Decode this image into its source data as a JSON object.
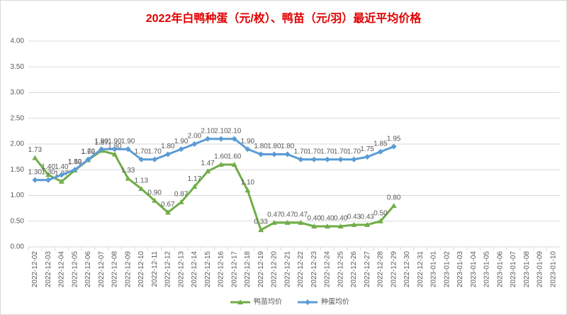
{
  "chart_data": {
    "type": "line",
    "title": "2022年白鸭种蛋（元/枚）、鸭苗（元/羽）最近平均价格",
    "categories": [
      "2022-12-02",
      "2022-12-03",
      "2022-12-04",
      "2022-12-05",
      "2022-12-06",
      "2022-12-07",
      "2022-12-08",
      "2022-12-09",
      "2022-12-10",
      "2022-12-11",
      "2022-12-12",
      "2022-12-13",
      "2022-12-14",
      "2022-12-15",
      "2022-12-16",
      "2022-12-17",
      "2022-12-18",
      "2022-12-19",
      "2022-12-20",
      "2022-12-21",
      "2022-12-22",
      "2022-12-23",
      "2022-12-24",
      "2022-12-25",
      "2022-12-26",
      "2022-12-27",
      "2022-12-28",
      "2022-12-29",
      "2022-12-30",
      "2022-12-31",
      "2023-01-01",
      "2023-01-02",
      "2023-01-03",
      "2023-01-04",
      "2023-01-05",
      "2023-01-06",
      "2023-01-07",
      "2023-01-08",
      "2023-01-09",
      "2023-01-10"
    ],
    "series": [
      {
        "name": "鸭苗均价",
        "color": "#70ad47",
        "marker": "triangle",
        "values": [
          1.73,
          1.4,
          1.27,
          1.49,
          1.69,
          1.87,
          1.8,
          1.33,
          1.13,
          0.9,
          0.67,
          0.87,
          1.17,
          1.47,
          1.6,
          1.6,
          1.1,
          0.33,
          0.47,
          0.47,
          0.47,
          0.4,
          0.4,
          0.4,
          0.43,
          0.43,
          0.5,
          0.8,
          null,
          null,
          null,
          null,
          null,
          null,
          null,
          null,
          null,
          null,
          null,
          null
        ],
        "value_labels": [
          "1.73",
          "1.40",
          "1.27",
          "1.49",
          "1.69",
          "1.87",
          "1.80",
          "1.33",
          "1.13",
          "0.90",
          "0.67",
          "0.87",
          "1.17",
          "1.47",
          "1.60",
          "1.60",
          "1.10",
          "0.33",
          "0.47",
          "0.47",
          "0.47",
          "0.40",
          "0.40",
          "0.40",
          "0.43",
          "0.43",
          "0.50",
          "0.80",
          null,
          null,
          null,
          null,
          null,
          null,
          null,
          null,
          null,
          null,
          null,
          null
        ]
      },
      {
        "name": "种蛋均价",
        "color": "#5b9bd5",
        "marker": "diamond",
        "values": [
          1.3,
          1.3,
          1.4,
          1.5,
          1.7,
          1.9,
          1.9,
          1.9,
          1.7,
          1.7,
          1.8,
          1.9,
          2.0,
          2.1,
          2.1,
          2.1,
          1.9,
          1.8,
          1.8,
          1.8,
          1.7,
          1.7,
          1.7,
          1.7,
          1.7,
          1.75,
          1.85,
          1.95,
          null,
          null,
          null,
          null,
          null,
          null,
          null,
          null,
          null,
          null,
          null,
          null
        ],
        "value_labels": [
          "1.30",
          "1.30",
          "1.40",
          "1.50",
          "1.70",
          "1.90",
          "1.90",
          "1.90",
          "1.70",
          "1.70",
          "1.80",
          "1.90",
          "2.00",
          "2.10",
          "2.10",
          "2.10",
          "1.90",
          "1.80",
          "1.80",
          "1.80",
          "1.70",
          "1.70",
          "1.70",
          "1.70",
          "1.70",
          "1.75",
          "1.85",
          "1.95",
          null,
          null,
          null,
          null,
          null,
          null,
          null,
          null,
          null,
          null,
          null,
          null
        ]
      }
    ],
    "ylim": [
      0,
      4
    ],
    "yticks": [
      {
        "value": 0,
        "label": "0.00"
      },
      {
        "value": 0.5,
        "label": "0.50"
      },
      {
        "value": 1,
        "label": "1.00"
      },
      {
        "value": 1.5,
        "label": "1.50"
      },
      {
        "value": 2,
        "label": "2.00"
      },
      {
        "value": 2.5,
        "label": "2.50"
      },
      {
        "value": 3,
        "label": "3.00"
      },
      {
        "value": 3.5,
        "label": "3.50"
      },
      {
        "value": 4,
        "label": "4.00"
      }
    ],
    "grid": true,
    "legend": "bottom"
  }
}
